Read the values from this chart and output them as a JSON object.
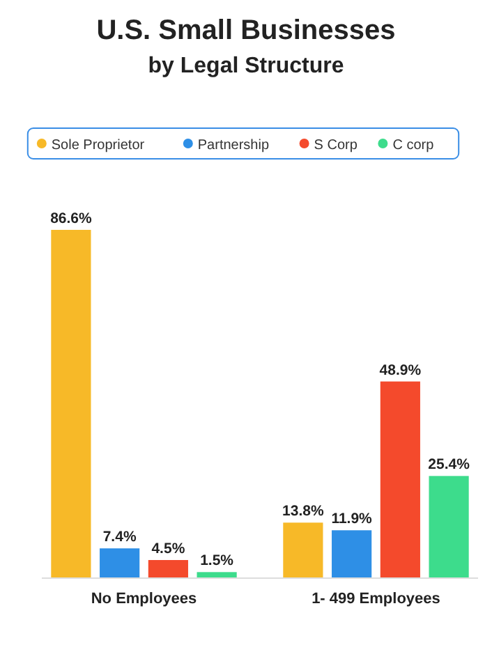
{
  "chart_data": {
    "type": "bar",
    "title": "U.S. Small Businesses",
    "subtitle": "by Legal Structure",
    "categories": [
      "No Employees",
      "1- 499 Employees"
    ],
    "series": [
      {
        "name": "Sole Proprietor",
        "color": "#f7b928",
        "values": [
          86.6,
          13.8
        ],
        "value_labels": [
          "86.6%",
          "13.8%"
        ]
      },
      {
        "name": "Partnership",
        "color": "#2e8fe6",
        "values": [
          7.4,
          11.9
        ],
        "value_labels": [
          "7.4%",
          "11.9%"
        ]
      },
      {
        "name": "S Corp",
        "color": "#f44a2c",
        "values": [
          4.5,
          48.9
        ],
        "value_labels": [
          "4.5%",
          "48.9%"
        ]
      },
      {
        "name": "C corp",
        "color": "#3ddc8c",
        "values": [
          1.5,
          25.4
        ],
        "value_labels": [
          "1.5%",
          "25.4%"
        ]
      }
    ],
    "legend": "top"
  }
}
